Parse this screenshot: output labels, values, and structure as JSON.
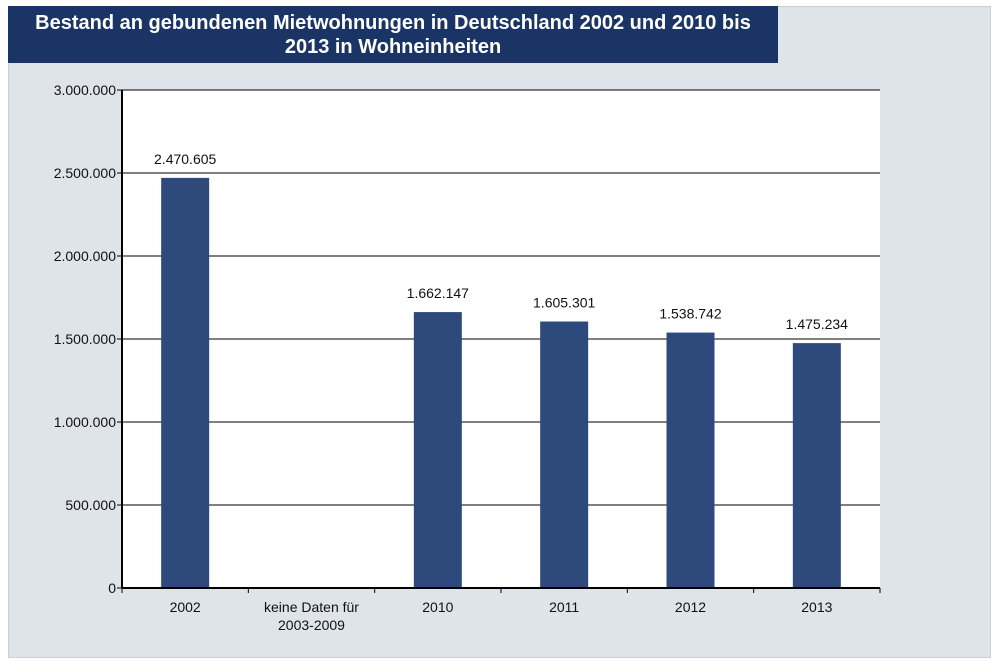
{
  "chart_data": {
    "type": "bar",
    "title": "Bestand an gebundenen Mietwohnungen in Deutschland 2002 und 2010 bis 2013 in Wohneinheiten",
    "title_lines": [
      "Bestand an gebundenen Mietwohnungen in Deutschland 2002 und 2010 bis",
      "2013 in Wohneinheiten"
    ],
    "categories": [
      "2002",
      "keine Daten für 2003-2009",
      "2010",
      "2011",
      "2012",
      "2013"
    ],
    "category_lines": [
      [
        "2002"
      ],
      [
        "keine Daten für",
        "2003-2009"
      ],
      [
        "2010"
      ],
      [
        "2011"
      ],
      [
        "2012"
      ],
      [
        "2013"
      ]
    ],
    "values": [
      2470605,
      null,
      1662147,
      1605301,
      1538742,
      1475234
    ],
    "data_labels": [
      "2.470.605",
      "",
      "1.662.147",
      "1.605.301",
      "1.538.742",
      "1.475.234"
    ],
    "ylim": [
      0,
      3000000
    ],
    "yticks": [
      0,
      500000,
      1000000,
      1500000,
      2000000,
      2500000,
      3000000
    ],
    "ytick_labels": [
      "0",
      "500.000",
      "1.000.000",
      "1.500.000",
      "2.000.000",
      "2.500.000",
      "3.000.000"
    ],
    "xlabel": "",
    "ylabel": "",
    "grid": true,
    "legend": false,
    "colors": {
      "bar": "#2e4a7d",
      "title_bg": "#1a3466",
      "title_text": "#ffffff",
      "frame_bg": "#dfe3ea",
      "plot_bg": "#ffffff",
      "grid": "#000000"
    }
  }
}
